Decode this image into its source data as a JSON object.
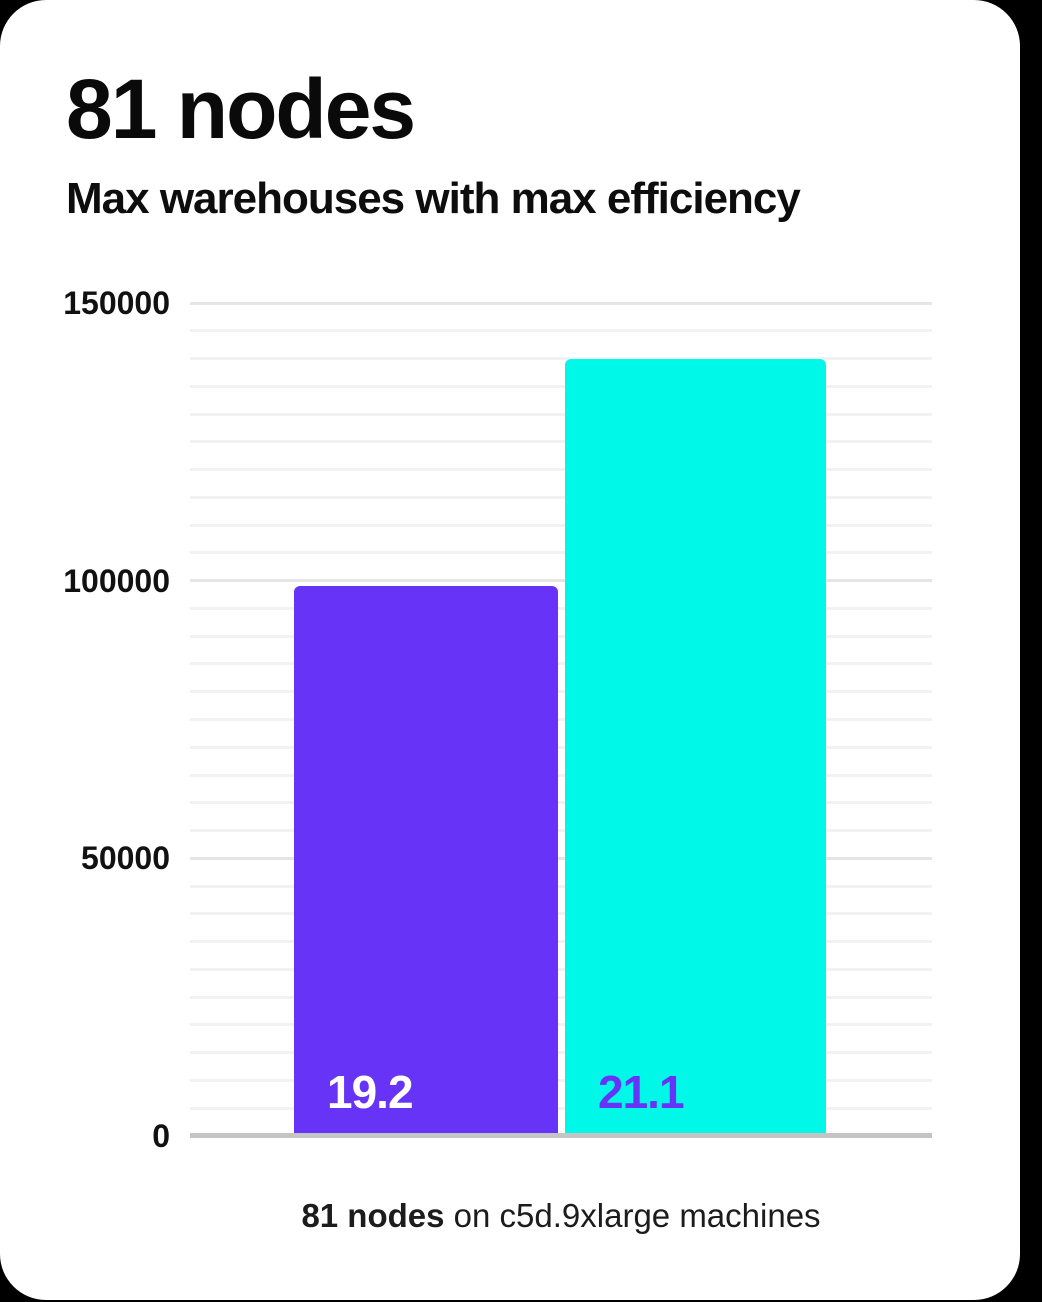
{
  "page": {
    "background_color": "#000000",
    "card_color": "#ffffff"
  },
  "header": {
    "title": "81 nodes",
    "subtitle": "Max warehouses with max efficiency"
  },
  "chart_data": {
    "type": "bar",
    "title": "81 nodes",
    "subtitle": "Max warehouses with max efficiency",
    "categories": [
      "19.2",
      "21.1"
    ],
    "values": [
      99000,
      140000
    ],
    "series": [
      {
        "name": "19.2",
        "value": 99000,
        "bar_color": "#6633f7",
        "label_color": "#ffffff"
      },
      {
        "name": "21.1",
        "value": 140000,
        "bar_color": "#00f8e8",
        "label_color": "#6633f7"
      }
    ],
    "xlabel": "",
    "ylabel": "",
    "ylim": [
      0,
      150000
    ],
    "ytick_labels": [
      "150000",
      "100000",
      "50000",
      "0"
    ],
    "ytick_step_major": 50000,
    "ytick_step_minor": 5000,
    "grid": true,
    "legend_position": "none",
    "value_labels_inside_bars": true,
    "colors": {
      "gridline_minor": "#f2f2f2",
      "gridline_major": "#e5e5e5",
      "axis_baseline": "#c4c4c4",
      "tick_text": "#111111"
    }
  },
  "caption": {
    "bold": "81 nodes",
    "rest": " on c5d.9xlarge machines"
  }
}
